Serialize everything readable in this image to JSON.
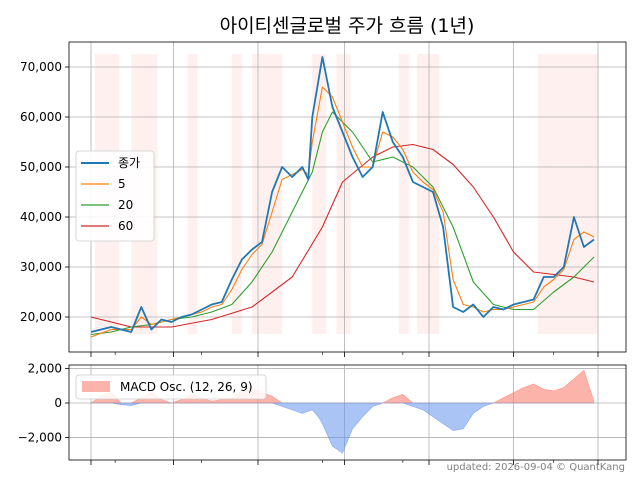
{
  "chart_data": [
    {
      "type": "line",
      "title": "아이티센글로벌 주가 흐름 (1년)",
      "xlabel": "",
      "ylabel": "",
      "x_range": [
        0,
        252
      ],
      "ylim": [
        13000,
        75000
      ],
      "yticks": [
        20000,
        30000,
        40000,
        50000,
        60000,
        70000
      ],
      "ytick_labels": [
        "20,000",
        "30,000",
        "40,000",
        "50,000",
        "60,000",
        "70,000"
      ],
      "grid": true,
      "legend_position": "center-left",
      "series": [
        {
          "name": "종가",
          "color": "#1f77b4",
          "x": [
            0,
            10,
            20,
            25,
            30,
            35,
            40,
            45,
            50,
            55,
            60,
            65,
            70,
            75,
            80,
            85,
            90,
            95,
            100,
            105,
            108,
            110,
            115,
            120,
            125,
            130,
            135,
            140,
            145,
            150,
            155,
            160,
            165,
            170,
            175,
            180,
            185,
            190,
            195,
            200,
            205,
            210,
            215,
            220,
            225,
            230,
            235,
            240,
            245,
            250
          ],
          "y": [
            17000,
            18000,
            17000,
            22000,
            17500,
            19500,
            19000,
            20000,
            20500,
            21500,
            22500,
            23000,
            27500,
            31500,
            33500,
            35000,
            45000,
            50000,
            48000,
            50000,
            47500,
            60000,
            72000,
            62000,
            57000,
            52000,
            48000,
            50000,
            61000,
            55000,
            52000,
            47000,
            46000,
            45000,
            38000,
            22000,
            21000,
            22500,
            20000,
            22000,
            21500,
            22500,
            23000,
            23500,
            28000,
            28000,
            30000,
            40000,
            34000,
            35500
          ]
        },
        {
          "name": "5",
          "color": "#ff7f0e",
          "x": [
            0,
            10,
            20,
            25,
            30,
            35,
            40,
            45,
            50,
            55,
            60,
            65,
            70,
            75,
            80,
            85,
            90,
            95,
            100,
            105,
            108,
            110,
            115,
            120,
            125,
            130,
            135,
            140,
            145,
            150,
            155,
            160,
            165,
            170,
            175,
            180,
            185,
            190,
            195,
            200,
            205,
            210,
            215,
            220,
            225,
            230,
            235,
            240,
            245,
            250
          ],
          "y": [
            16000,
            17500,
            17500,
            20000,
            18500,
            19000,
            19500,
            20000,
            20500,
            21000,
            22000,
            22500,
            25500,
            29500,
            32500,
            34500,
            41000,
            47500,
            48500,
            49500,
            48500,
            55000,
            66000,
            64000,
            59000,
            54000,
            50000,
            50000,
            57000,
            56000,
            53500,
            49000,
            47000,
            45500,
            41000,
            27500,
            22500,
            22000,
            21000,
            21500,
            21500,
            22000,
            22500,
            23000,
            26000,
            27500,
            29500,
            35500,
            37000,
            36000
          ]
        },
        {
          "name": "20",
          "color": "#2ca02c",
          "x": [
            0,
            10,
            20,
            30,
            40,
            50,
            60,
            70,
            80,
            90,
            100,
            110,
            115,
            120,
            130,
            140,
            150,
            160,
            170,
            180,
            190,
            200,
            210,
            220,
            230,
            240,
            250
          ],
          "y": [
            16500,
            17000,
            18000,
            18500,
            19500,
            20000,
            21000,
            22500,
            27000,
            33000,
            41000,
            49000,
            57000,
            61000,
            57000,
            51000,
            52000,
            50000,
            46000,
            38000,
            27000,
            22500,
            21500,
            21500,
            25000,
            28000,
            32000
          ]
        },
        {
          "name": "60",
          "color": "#d62728",
          "x": [
            0,
            20,
            40,
            60,
            80,
            100,
            115,
            125,
            140,
            150,
            160,
            170,
            180,
            190,
            200,
            210,
            220,
            230,
            240,
            250
          ],
          "y": [
            20000,
            18000,
            18000,
            19500,
            22000,
            28000,
            38000,
            47000,
            52000,
            54000,
            54500,
            53500,
            50500,
            46000,
            40000,
            33000,
            29000,
            28500,
            28000,
            27000
          ]
        }
      ],
      "shaded_regions": [
        [
          2,
          14
        ],
        [
          20,
          33
        ],
        [
          48,
          53
        ],
        [
          70,
          75
        ],
        [
          80,
          95
        ],
        [
          110,
          117
        ],
        [
          122,
          129
        ],
        [
          153,
          158
        ],
        [
          162,
          173
        ],
        [
          222,
          252
        ]
      ]
    },
    {
      "type": "area",
      "title": "",
      "ylim": [
        -3300,
        2200
      ],
      "yticks": [
        -2000,
        0,
        2000
      ],
      "ytick_labels": [
        "−2,000",
        "0",
        "2,000"
      ],
      "series": [
        {
          "name": "MACD Osc. (12, 26, 9)",
          "positive_color": "#fa8072",
          "negative_color": "#6495ed",
          "x": [
            0,
            5,
            10,
            15,
            20,
            25,
            30,
            35,
            40,
            45,
            50,
            55,
            60,
            65,
            70,
            75,
            80,
            85,
            90,
            95,
            100,
            105,
            110,
            113,
            115,
            120,
            125,
            130,
            135,
            140,
            145,
            150,
            155,
            160,
            165,
            170,
            175,
            180,
            185,
            190,
            195,
            200,
            205,
            210,
            215,
            220,
            225,
            230,
            235,
            240,
            245,
            250
          ],
          "y": [
            0,
            400,
            600,
            -100,
            -150,
            300,
            600,
            200,
            0,
            200,
            500,
            300,
            100,
            200,
            300,
            700,
            900,
            600,
            400,
            -200,
            -400,
            -600,
            -400,
            -800,
            -1200,
            -2500,
            -2900,
            -1500,
            -800,
            -200,
            0,
            300,
            500,
            -200,
            -400,
            -800,
            -1200,
            -1600,
            -1500,
            -600,
            -200,
            0,
            300,
            600,
            900,
            1100,
            800,
            700,
            900,
            1400,
            1900,
            100
          ]
        }
      ]
    }
  ],
  "footer": "updated: 2026-09-04 © QuantKang"
}
